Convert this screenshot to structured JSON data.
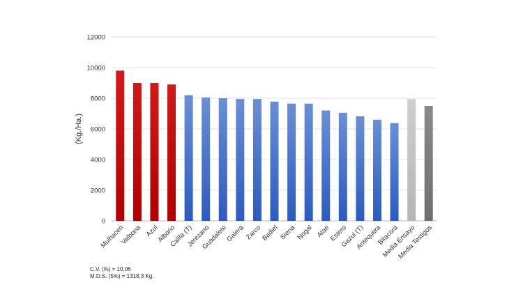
{
  "chart_data": {
    "type": "bar",
    "ylabel": "(Kg./Ha.)",
    "ylim": [
      0,
      12000
    ],
    "yticks": [
      0,
      2000,
      4000,
      6000,
      8000,
      10000,
      12000
    ],
    "grid": true,
    "categories": [
      "Mulhacen",
      "Valbona",
      "Azul",
      "Alborio",
      "Califa (T)",
      "Jerezano",
      "Guadalete",
      "Galera",
      "Zarco",
      "Badiel",
      "Siena",
      "Nogal",
      "Atae",
      "Estero",
      "Gazul (T)",
      "Antequera",
      "Bitacora",
      "Media Ensayo",
      "Media Testigos"
    ],
    "values": [
      9800,
      9000,
      9000,
      8900,
      8200,
      8050,
      8000,
      7950,
      7950,
      7780,
      7650,
      7650,
      7200,
      7050,
      6820,
      6600,
      6380,
      7950,
      7500
    ],
    "bar_colors": [
      "#c00000",
      "#c00000",
      "#c00000",
      "#c00000",
      "#4472c4",
      "#4472c4",
      "#4472c4",
      "#4472c4",
      "#4472c4",
      "#4472c4",
      "#4472c4",
      "#4472c4",
      "#4472c4",
      "#4472c4",
      "#4472c4",
      "#4472c4",
      "#4472c4",
      "#bfbfbf",
      "#7f7f7f"
    ]
  },
  "notes": {
    "cv": "C.V. (%) = 10,06",
    "mds": "M.D.S. (5%) = 1318,3 Kg."
  }
}
